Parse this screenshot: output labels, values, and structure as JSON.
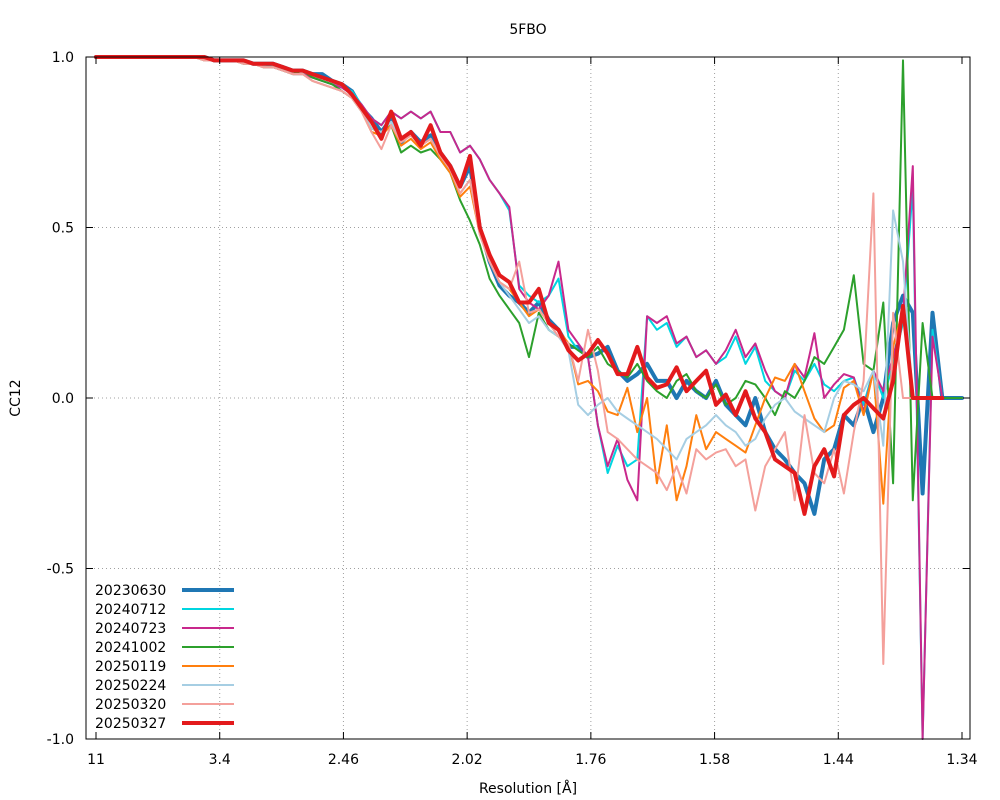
{
  "chart_data": {
    "type": "line",
    "title": "5FBO",
    "xlabel": "Resolution [Å]",
    "ylabel": "CC12",
    "ylim": [
      -1.0,
      1.0
    ],
    "y_ticks": [
      "1.0",
      "0.5",
      "0.0",
      "-0.5",
      "-1.0"
    ],
    "y_tick_values": [
      1.0,
      0.5,
      0.0,
      -0.5,
      -1.0
    ],
    "x_tick_labels": [
      "11",
      "3.4",
      "2.46",
      "2.02",
      "1.76",
      "1.58",
      "1.44",
      "1.34"
    ],
    "x_axis": "resolution bins from 11 Å to 1.34 Å",
    "grid": true,
    "legend_position": "bottom-left",
    "series": [
      {
        "name": "20230630",
        "color": "#1f77b4",
        "thick": true,
        "y": [
          1.0,
          1.0,
          1.0,
          1.0,
          1.0,
          1.0,
          1.0,
          1.0,
          1.0,
          1.0,
          1.0,
          1.0,
          0.99,
          0.99,
          0.99,
          0.99,
          0.98,
          0.98,
          0.98,
          0.97,
          0.96,
          0.96,
          0.95,
          0.95,
          0.93,
          0.92,
          0.9,
          0.85,
          0.82,
          0.78,
          0.82,
          0.75,
          0.78,
          0.75,
          0.77,
          0.72,
          0.68,
          0.62,
          0.68,
          0.5,
          0.4,
          0.33,
          0.3,
          0.28,
          0.25,
          0.28,
          0.23,
          0.2,
          0.15,
          0.15,
          0.12,
          0.13,
          0.15,
          0.08,
          0.05,
          0.07,
          0.1,
          0.05,
          0.05,
          0.0,
          0.05,
          0.02,
          0.0,
          0.05,
          -0.02,
          -0.05,
          -0.08,
          0.0,
          -0.1,
          -0.15,
          -0.18,
          -0.22,
          -0.25,
          -0.34,
          -0.18,
          -0.15,
          -0.05,
          -0.08,
          0.0,
          -0.1,
          0.0,
          0.22,
          0.3,
          0.25,
          -0.28,
          0.25,
          0.0,
          0.0,
          0.0
        ]
      },
      {
        "name": "20240712",
        "color": "#00d5e0",
        "thick": false,
        "y": [
          1.0,
          1.0,
          1.0,
          1.0,
          1.0,
          1.0,
          1.0,
          1.0,
          1.0,
          1.0,
          1.0,
          1.0,
          0.99,
          0.99,
          0.99,
          0.99,
          0.98,
          0.98,
          0.97,
          0.96,
          0.95,
          0.95,
          0.94,
          0.93,
          0.92,
          0.91,
          0.9,
          0.86,
          0.82,
          0.8,
          0.84,
          0.82,
          0.84,
          0.82,
          0.84,
          0.78,
          0.78,
          0.72,
          0.74,
          0.7,
          0.64,
          0.6,
          0.55,
          0.33,
          0.3,
          0.28,
          0.3,
          0.35,
          0.18,
          0.14,
          0.12,
          -0.08,
          -0.22,
          -0.14,
          -0.2,
          -0.18,
          0.24,
          0.2,
          0.22,
          0.15,
          0.18,
          0.12,
          0.14,
          0.1,
          0.12,
          0.18,
          0.1,
          0.15,
          0.05,
          0.02,
          0.0,
          0.08,
          0.05,
          0.1,
          0.04,
          0.02,
          0.05,
          0.06,
          -0.02,
          0.08,
          0.0,
          0.1,
          0.22,
          0.62,
          -1.0,
          0.2,
          0.0,
          0.0,
          0.0
        ]
      },
      {
        "name": "20240723",
        "color": "#c8288c",
        "thick": false,
        "y": [
          1.0,
          1.0,
          1.0,
          1.0,
          1.0,
          1.0,
          1.0,
          1.0,
          1.0,
          1.0,
          1.0,
          1.0,
          0.99,
          0.99,
          0.99,
          0.98,
          0.98,
          0.97,
          0.97,
          0.96,
          0.95,
          0.95,
          0.94,
          0.93,
          0.92,
          0.91,
          0.89,
          0.86,
          0.82,
          0.8,
          0.84,
          0.82,
          0.84,
          0.82,
          0.84,
          0.78,
          0.78,
          0.72,
          0.74,
          0.7,
          0.64,
          0.6,
          0.56,
          0.32,
          0.28,
          0.26,
          0.3,
          0.4,
          0.2,
          0.16,
          0.12,
          -0.08,
          -0.2,
          -0.12,
          -0.24,
          -0.3,
          0.24,
          0.22,
          0.24,
          0.16,
          0.18,
          0.12,
          0.14,
          0.1,
          0.14,
          0.2,
          0.12,
          0.16,
          0.08,
          0.02,
          0.0,
          0.1,
          0.06,
          0.19,
          0.0,
          0.04,
          0.07,
          0.06,
          -0.04,
          0.08,
          0.02,
          0.12,
          0.24,
          0.68,
          -1.0,
          0.18,
          0.0,
          0.0,
          0.0
        ]
      },
      {
        "name": "20241002",
        "color": "#2ca02c",
        "thick": false,
        "y": [
          1.0,
          1.0,
          1.0,
          1.0,
          1.0,
          1.0,
          1.0,
          1.0,
          1.0,
          1.0,
          1.0,
          0.99,
          0.99,
          0.99,
          0.99,
          0.98,
          0.98,
          0.97,
          0.97,
          0.96,
          0.95,
          0.96,
          0.94,
          0.93,
          0.92,
          0.9,
          0.88,
          0.84,
          0.79,
          0.78,
          0.8,
          0.72,
          0.74,
          0.72,
          0.73,
          0.7,
          0.66,
          0.58,
          0.52,
          0.45,
          0.35,
          0.3,
          0.26,
          0.22,
          0.12,
          0.25,
          0.2,
          0.18,
          0.16,
          0.14,
          0.12,
          0.15,
          0.1,
          0.08,
          0.06,
          0.1,
          0.05,
          0.02,
          0.0,
          0.05,
          0.07,
          0.02,
          0.0,
          0.04,
          -0.02,
          0.0,
          0.05,
          0.04,
          0.0,
          -0.05,
          0.02,
          0.0,
          0.05,
          0.12,
          0.1,
          0.15,
          0.2,
          0.36,
          0.1,
          0.08,
          0.28,
          -0.25,
          0.99,
          -0.3,
          0.22,
          0.0,
          0.0,
          0.0,
          0.0
        ]
      },
      {
        "name": "20250119",
        "color": "#ff7f0e",
        "thick": false,
        "y": [
          1.0,
          1.0,
          1.0,
          1.0,
          1.0,
          1.0,
          1.0,
          1.0,
          1.0,
          1.0,
          1.0,
          0.99,
          0.99,
          0.99,
          0.99,
          0.98,
          0.98,
          0.97,
          0.97,
          0.96,
          0.95,
          0.95,
          0.93,
          0.92,
          0.91,
          0.9,
          0.88,
          0.84,
          0.78,
          0.77,
          0.8,
          0.74,
          0.76,
          0.73,
          0.75,
          0.7,
          0.66,
          0.59,
          0.62,
          0.48,
          0.4,
          0.34,
          0.32,
          0.28,
          0.24,
          0.26,
          0.22,
          0.2,
          0.16,
          0.04,
          0.05,
          0.02,
          -0.04,
          -0.05,
          0.03,
          -0.1,
          0.0,
          -0.25,
          -0.08,
          -0.3,
          -0.2,
          -0.05,
          -0.15,
          -0.1,
          -0.12,
          -0.14,
          -0.16,
          -0.08,
          0.0,
          0.06,
          0.05,
          0.1,
          0.02,
          -0.06,
          -0.1,
          -0.08,
          0.03,
          0.05,
          -0.05,
          0.08,
          -0.31,
          0.15,
          0.26,
          0.0,
          0.0,
          0.0,
          0.0
        ]
      },
      {
        "name": "20250224",
        "color": "#a6cee3",
        "thick": false,
        "y": [
          1.0,
          1.0,
          1.0,
          1.0,
          1.0,
          1.0,
          1.0,
          1.0,
          1.0,
          1.0,
          1.0,
          0.99,
          0.99,
          0.99,
          0.99,
          0.98,
          0.98,
          0.97,
          0.97,
          0.96,
          0.95,
          0.95,
          0.93,
          0.92,
          0.91,
          0.9,
          0.88,
          0.84,
          0.79,
          0.78,
          0.81,
          0.76,
          0.77,
          0.74,
          0.76,
          0.71,
          0.67,
          0.6,
          0.64,
          0.48,
          0.4,
          0.34,
          0.3,
          0.26,
          0.22,
          0.24,
          0.2,
          0.18,
          0.14,
          -0.02,
          -0.05,
          -0.02,
          0.0,
          -0.04,
          -0.06,
          -0.08,
          -0.1,
          -0.12,
          -0.15,
          -0.18,
          -0.12,
          -0.1,
          -0.08,
          -0.05,
          -0.08,
          -0.1,
          -0.14,
          -0.12,
          -0.06,
          -0.02,
          0.0,
          -0.04,
          -0.06,
          -0.08,
          -0.1,
          0.0,
          0.05,
          0.04,
          0.02,
          0.08,
          -0.14,
          0.55,
          0.4,
          0.0,
          0.0,
          0.0,
          0.0
        ]
      },
      {
        "name": "20250320",
        "color": "#f4a09b",
        "thick": false,
        "y": [
          1.0,
          1.0,
          1.0,
          1.0,
          1.0,
          1.0,
          1.0,
          1.0,
          1.0,
          1.0,
          1.0,
          0.99,
          0.99,
          0.99,
          0.99,
          0.98,
          0.98,
          0.97,
          0.97,
          0.96,
          0.95,
          0.95,
          0.93,
          0.92,
          0.91,
          0.9,
          0.88,
          0.84,
          0.78,
          0.73,
          0.8,
          0.75,
          0.77,
          0.74,
          0.76,
          0.71,
          0.67,
          0.6,
          0.64,
          0.48,
          0.4,
          0.34,
          0.32,
          0.4,
          0.25,
          0.26,
          0.22,
          0.18,
          0.16,
          0.05,
          0.2,
          0.08,
          -0.1,
          -0.12,
          -0.15,
          -0.18,
          -0.2,
          -0.22,
          -0.27,
          -0.2,
          -0.28,
          -0.15,
          -0.18,
          -0.16,
          -0.15,
          -0.2,
          -0.18,
          -0.33,
          -0.2,
          -0.15,
          -0.1,
          -0.3,
          -0.05,
          -0.22,
          -0.25,
          -0.15,
          -0.28,
          -0.1,
          0.05,
          0.6,
          -0.78,
          0.25,
          0.0,
          0.0,
          0.0,
          0.0
        ]
      },
      {
        "name": "20250327",
        "color": "#e31a1c",
        "thick": true,
        "y": [
          1.0,
          1.0,
          1.0,
          1.0,
          1.0,
          1.0,
          1.0,
          1.0,
          1.0,
          1.0,
          1.0,
          1.0,
          0.99,
          0.99,
          0.99,
          0.99,
          0.98,
          0.98,
          0.98,
          0.97,
          0.96,
          0.96,
          0.95,
          0.94,
          0.93,
          0.92,
          0.89,
          0.85,
          0.81,
          0.76,
          0.84,
          0.76,
          0.78,
          0.74,
          0.8,
          0.72,
          0.68,
          0.62,
          0.71,
          0.5,
          0.42,
          0.36,
          0.34,
          0.28,
          0.28,
          0.32,
          0.22,
          0.2,
          0.14,
          0.11,
          0.13,
          0.17,
          0.13,
          0.07,
          0.07,
          0.15,
          0.06,
          0.03,
          0.04,
          0.09,
          0.02,
          0.05,
          0.08,
          -0.02,
          0.01,
          -0.05,
          0.02,
          -0.06,
          -0.1,
          -0.18,
          -0.2,
          -0.22,
          -0.34,
          -0.2,
          -0.15,
          -0.23,
          -0.05,
          -0.02,
          0.0,
          -0.03,
          -0.06,
          0.05,
          0.27,
          0.0,
          0.0,
          0.0,
          0.0
        ]
      }
    ]
  }
}
